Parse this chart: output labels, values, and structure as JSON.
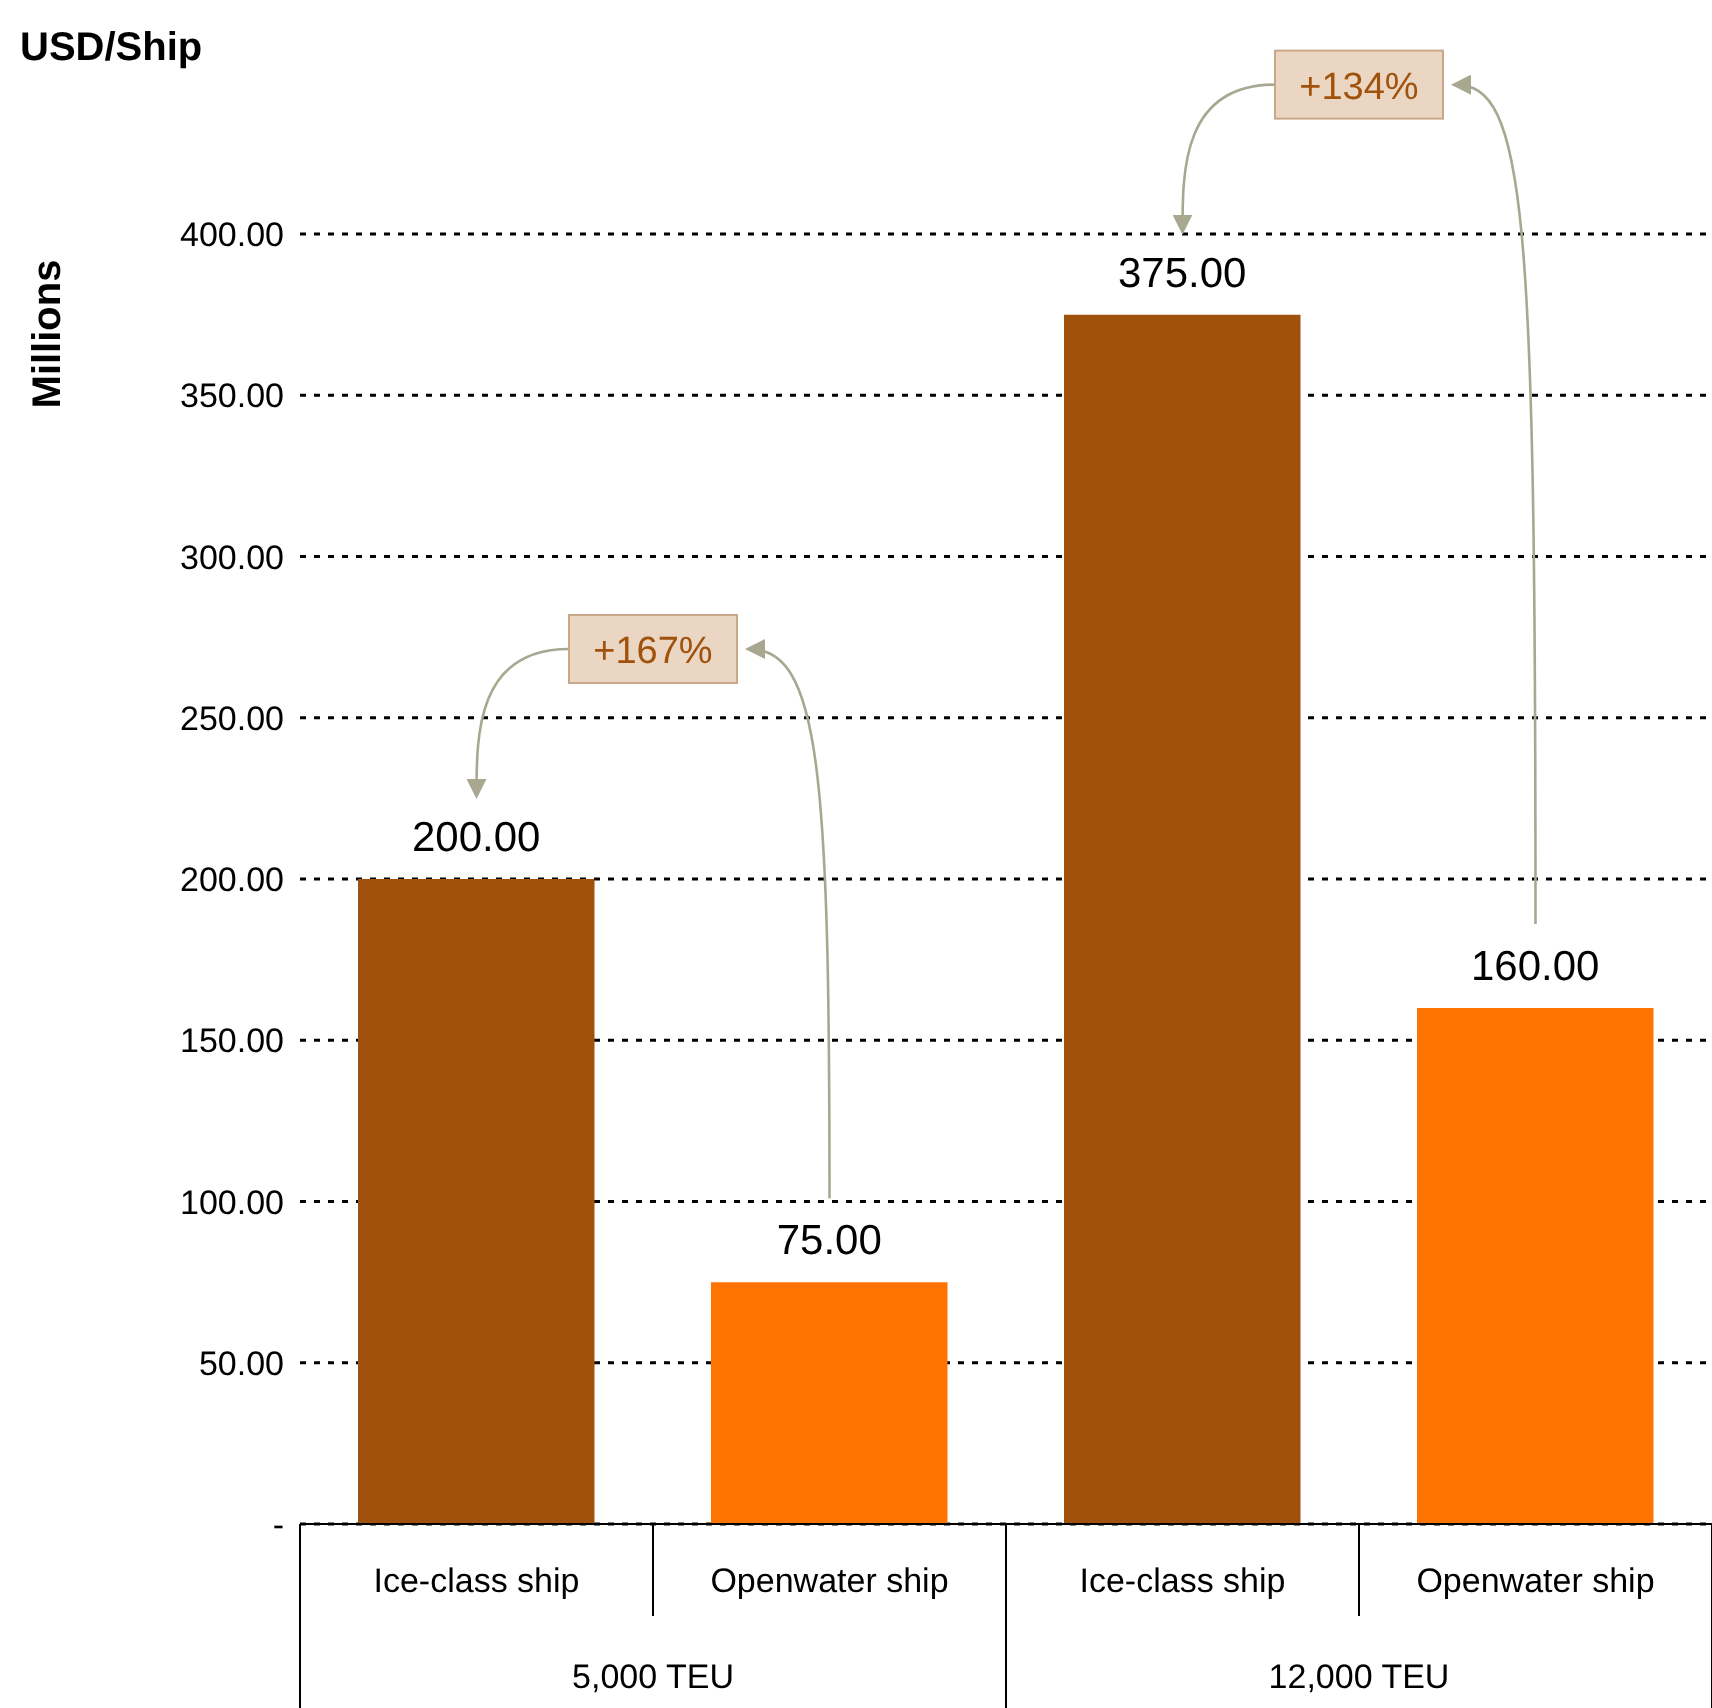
{
  "chart_data": {
    "type": "bar",
    "title": "USD/Ship",
    "ylabel": "Millions",
    "categories": [
      "Ice-class ship",
      "Openwater ship",
      "Ice-class ship",
      "Openwater ship"
    ],
    "values": [
      200,
      75,
      375,
      160
    ],
    "colors": [
      "#a0520c",
      "#ff7400",
      "#a0520c",
      "#ff7400"
    ],
    "value_labels": [
      "200.00",
      "75.00",
      "375.00",
      "160.00"
    ],
    "ylim": [
      0,
      400
    ],
    "yticks": [
      {
        "value": 0,
        "label": "-"
      },
      {
        "value": 50,
        "label": "50.00"
      },
      {
        "value": 100,
        "label": "100.00"
      },
      {
        "value": 150,
        "label": "150.00"
      },
      {
        "value": 200,
        "label": "200.00"
      },
      {
        "value": 250,
        "label": "250.00"
      },
      {
        "value": 300,
        "label": "300.00"
      },
      {
        "value": 350,
        "label": "350.00"
      },
      {
        "value": 400,
        "label": "400.00"
      }
    ],
    "grid": "y",
    "legend": false,
    "annotations": [
      "5,000 TEU",
      "12,000 TEU",
      "+167%",
      "+134%"
    ]
  }
}
